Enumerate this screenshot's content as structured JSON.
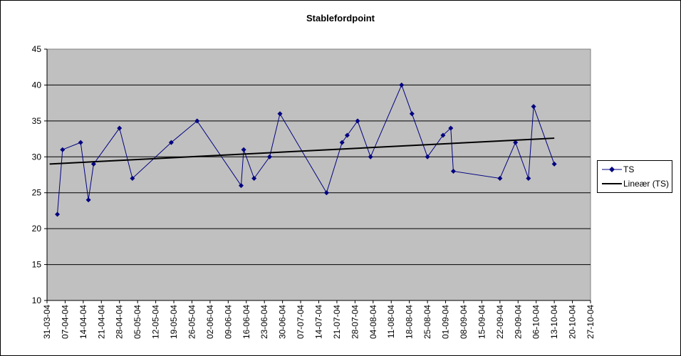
{
  "chart_data": {
    "type": "line",
    "title": "Stablefordpoint",
    "xlabel": "",
    "ylabel": "",
    "ylim": [
      10,
      45
    ],
    "yticks": [
      "10",
      "15",
      "20",
      "25",
      "30",
      "35",
      "40",
      "45"
    ],
    "xtick_labels": [
      "31-03-04",
      "07-04-04",
      "14-04-04",
      "21-04-04",
      "28-04-04",
      "05-05-04",
      "12-05-04",
      "19-05-04",
      "26-05-04",
      "02-06-04",
      "09-06-04",
      "16-06-04",
      "23-06-04",
      "30-06-04",
      "07-07-04",
      "14-07-04",
      "21-07-04",
      "28-07-04",
      "04-08-04",
      "11-08-04",
      "18-08-04",
      "25-08-04",
      "01-09-04",
      "08-09-04",
      "15-09-04",
      "22-09-04",
      "29-09-04",
      "06-10-04",
      "13-10-04",
      "20-10-04",
      "27-10-04"
    ],
    "x_start": "31-03-04",
    "x_end": "27-10-04",
    "grid": "horizontal",
    "legend_position": "right",
    "series": [
      {
        "name": "TS",
        "color": "#000080",
        "marker": "diamond",
        "points": [
          {
            "x": "04-04-04",
            "y": 22
          },
          {
            "x": "06-04-04",
            "y": 31
          },
          {
            "x": "13-04-04",
            "y": 32
          },
          {
            "x": "16-04-04",
            "y": 24
          },
          {
            "x": "18-04-04",
            "y": 29
          },
          {
            "x": "28-04-04",
            "y": 34
          },
          {
            "x": "03-05-04",
            "y": 27
          },
          {
            "x": "18-05-04",
            "y": 32
          },
          {
            "x": "28-05-04",
            "y": 35
          },
          {
            "x": "14-06-04",
            "y": 26
          },
          {
            "x": "15-06-04",
            "y": 31
          },
          {
            "x": "19-06-04",
            "y": 27
          },
          {
            "x": "25-06-04",
            "y": 30
          },
          {
            "x": "29-06-04",
            "y": 36
          },
          {
            "x": "17-07-04",
            "y": 25
          },
          {
            "x": "23-07-04",
            "y": 32
          },
          {
            "x": "25-07-04",
            "y": 33
          },
          {
            "x": "29-07-04",
            "y": 35
          },
          {
            "x": "03-08-04",
            "y": 30
          },
          {
            "x": "15-08-04",
            "y": 40
          },
          {
            "x": "19-08-04",
            "y": 36
          },
          {
            "x": "25-08-04",
            "y": 30
          },
          {
            "x": "31-08-04",
            "y": 33
          },
          {
            "x": "03-09-04",
            "y": 34
          },
          {
            "x": "04-09-04",
            "y": 28
          },
          {
            "x": "22-09-04",
            "y": 27
          },
          {
            "x": "28-09-04",
            "y": 32
          },
          {
            "x": "03-10-04",
            "y": 27
          },
          {
            "x": "05-10-04",
            "y": 37
          },
          {
            "x": "13-10-04",
            "y": 29
          }
        ]
      },
      {
        "name": "Lineær (TS)",
        "color": "#000000",
        "type": "trendline",
        "points": [
          {
            "x": "01-04-04",
            "y": 29.0
          },
          {
            "x": "13-10-04",
            "y": 32.6
          }
        ]
      }
    ]
  }
}
